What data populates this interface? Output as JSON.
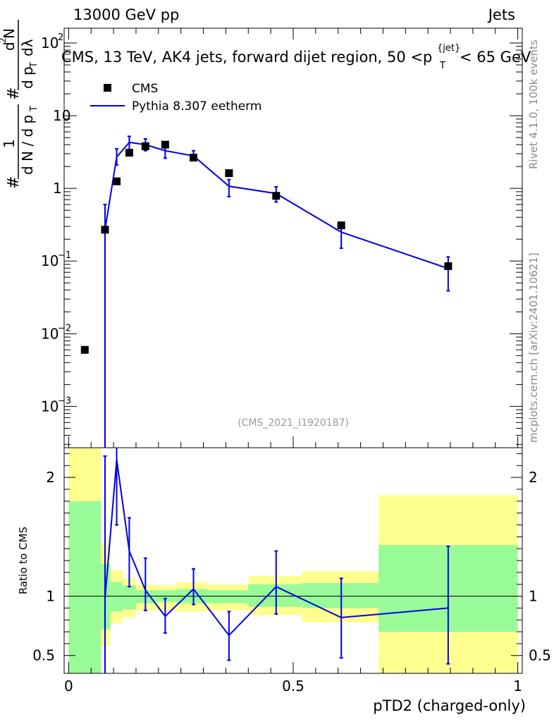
{
  "header": {
    "energy_label": "13000 GeV pp",
    "category_label": "Jets",
    "title": "CMS, 13 TeV, AK4 jets, forward dijet region, 50 <p",
    "title_sup": "{jet}",
    "title_sub": "T",
    "title_end": "< 65 GeV",
    "side_top": "Rivet 4.1.0,  100k events",
    "side_bottom": "mcplots.cern.ch [arXiv:2401.10621]",
    "analysis_id": "(CMS_2021_I1920187)"
  },
  "chart_data": [
    {
      "type": "scatter+line",
      "title": "CMS, 13 TeV, AK4 jets, forward dijet region, 50 <p_T^{jet}< 65 GeV",
      "xlabel": "pTD2 (charged-only)",
      "ylabel": "1/dN/dp_T  d^2N / dp_T dλ",
      "ylabel_parts": {
        "one": "1",
        "frac_num": "#",
        "frac_den": "d N / d p",
        "den_sub": "T",
        "second_num": "d",
        "second_num_sup": "2",
        "second_num_n": "N",
        "second_den": "d p",
        "second_den_sub": "T",
        "second_den_end": "dλ",
        "hashes": "#"
      },
      "yscale": "log",
      "xlim": [
        -0.01,
        1.01
      ],
      "ylim": [
        0.00027,
        160
      ],
      "y_ticks": [
        {
          "v": 0.001,
          "base": "10",
          "exp": "−3"
        },
        {
          "v": 0.01,
          "base": "10",
          "exp": "−2"
        },
        {
          "v": 0.1,
          "base": "10",
          "exp": "−1"
        },
        {
          "v": 1,
          "base": "1",
          "exp": ""
        },
        {
          "v": 10,
          "base": "10",
          "exp": ""
        },
        {
          "v": 100,
          "base": "10",
          "exp": "2"
        }
      ],
      "legend": [
        {
          "label": "CMS",
          "kind": "marker"
        },
        {
          "label": "Pythia 8.307 eetherm",
          "kind": "line"
        }
      ],
      "series": [
        {
          "name": "CMS",
          "x": [
            0.036,
            0.081,
            0.107,
            0.135,
            0.171,
            0.215,
            0.278,
            0.357,
            0.462,
            0.607,
            0.845
          ],
          "y": [
            0.006,
            0.27,
            1.25,
            3.1,
            3.8,
            4.0,
            2.65,
            1.62,
            0.79,
            0.31,
            0.085
          ]
        },
        {
          "name": "Pythia 8.307 eetherm",
          "x": [
            0.081,
            0.107,
            0.135,
            0.171,
            0.215,
            0.278,
            0.357,
            0.462,
            0.607,
            0.845
          ],
          "y": [
            0.27,
            2.7,
            4.3,
            4.0,
            3.3,
            2.8,
            1.07,
            0.85,
            0.25,
            0.079
          ],
          "err_low": [
            0.27,
            0.6,
            1.0,
            0.7,
            0.7,
            0.35,
            0.3,
            0.2,
            0.1,
            0.04
          ],
          "err_high": [
            0.33,
            0.8,
            0.9,
            0.8,
            0.8,
            0.5,
            0.25,
            0.2,
            0.08,
            0.035
          ]
        }
      ],
      "watermark": "(CMS_2021_I1920187)"
    },
    {
      "type": "ratio",
      "ylabel": "Ratio to CMS",
      "xlabel": "pTD2 (charged-only)",
      "ylim": [
        0.35,
        2.25
      ],
      "y_ticks": [
        0.5,
        1,
        2
      ],
      "x_ticks": [
        0,
        0.5,
        1
      ],
      "x_tick_labels": [
        "0",
        "0.5",
        "1"
      ],
      "bands": [
        {
          "x0": 0.0,
          "x1": 0.072,
          "g_lo": 0.35,
          "g_hi": 1.8,
          "y_lo": 0.35,
          "y_hi": 2.25
        },
        {
          "x0": 0.072,
          "x1": 0.093,
          "g_lo": 0.72,
          "g_hi": 1.27,
          "y_lo": 0.58,
          "y_hi": 1.45
        },
        {
          "x0": 0.093,
          "x1": 0.12,
          "g_lo": 0.87,
          "g_hi": 1.12,
          "y_lo": 0.77,
          "y_hi": 1.22
        },
        {
          "x0": 0.12,
          "x1": 0.15,
          "g_lo": 0.89,
          "g_hi": 1.09,
          "y_lo": 0.82,
          "y_hi": 1.15
        },
        {
          "x0": 0.15,
          "x1": 0.19,
          "g_lo": 0.94,
          "g_hi": 1.05,
          "y_lo": 0.88,
          "y_hi": 1.1
        },
        {
          "x0": 0.19,
          "x1": 0.24,
          "g_lo": 0.95,
          "g_hi": 1.05,
          "y_lo": 0.88,
          "y_hi": 1.09
        },
        {
          "x0": 0.24,
          "x1": 0.31,
          "g_lo": 0.94,
          "g_hi": 1.06,
          "y_lo": 0.87,
          "y_hi": 1.12
        },
        {
          "x0": 0.31,
          "x1": 0.4,
          "g_lo": 0.94,
          "g_hi": 1.05,
          "y_lo": 0.88,
          "y_hi": 1.1
        },
        {
          "x0": 0.4,
          "x1": 0.52,
          "g_lo": 0.91,
          "g_hi": 1.1,
          "y_lo": 0.84,
          "y_hi": 1.17
        },
        {
          "x0": 0.52,
          "x1": 0.69,
          "g_lo": 0.9,
          "g_hi": 1.11,
          "y_lo": 0.78,
          "y_hi": 1.21
        },
        {
          "x0": 0.69,
          "x1": 1.0,
          "g_lo": 0.7,
          "g_hi": 1.43,
          "y_lo": 0.35,
          "y_hi": 1.85
        }
      ],
      "series": [
        {
          "name": "Pythia 8.307 eetherm / CMS",
          "x": [
            0.081,
            0.107,
            0.135,
            0.171,
            0.215,
            0.278,
            0.357,
            0.462,
            0.607,
            0.845
          ],
          "y": [
            0.98,
            2.15,
            1.38,
            1.05,
            0.83,
            1.06,
            0.67,
            1.08,
            0.82,
            0.9
          ],
          "err_low": [
            0.65,
            0.55,
            0.3,
            0.17,
            0.14,
            0.13,
            0.21,
            0.23,
            0.34,
            0.47
          ],
          "err_high": [
            1.2,
            0.3,
            0.28,
            0.27,
            0.15,
            0.17,
            0.2,
            0.3,
            0.33,
            0.52
          ]
        }
      ]
    }
  ],
  "colors": {
    "mc_line": "#0000e6",
    "data_marker": "#000000",
    "band_inner": "#98fb98",
    "band_outer": "#ffff8f"
  }
}
